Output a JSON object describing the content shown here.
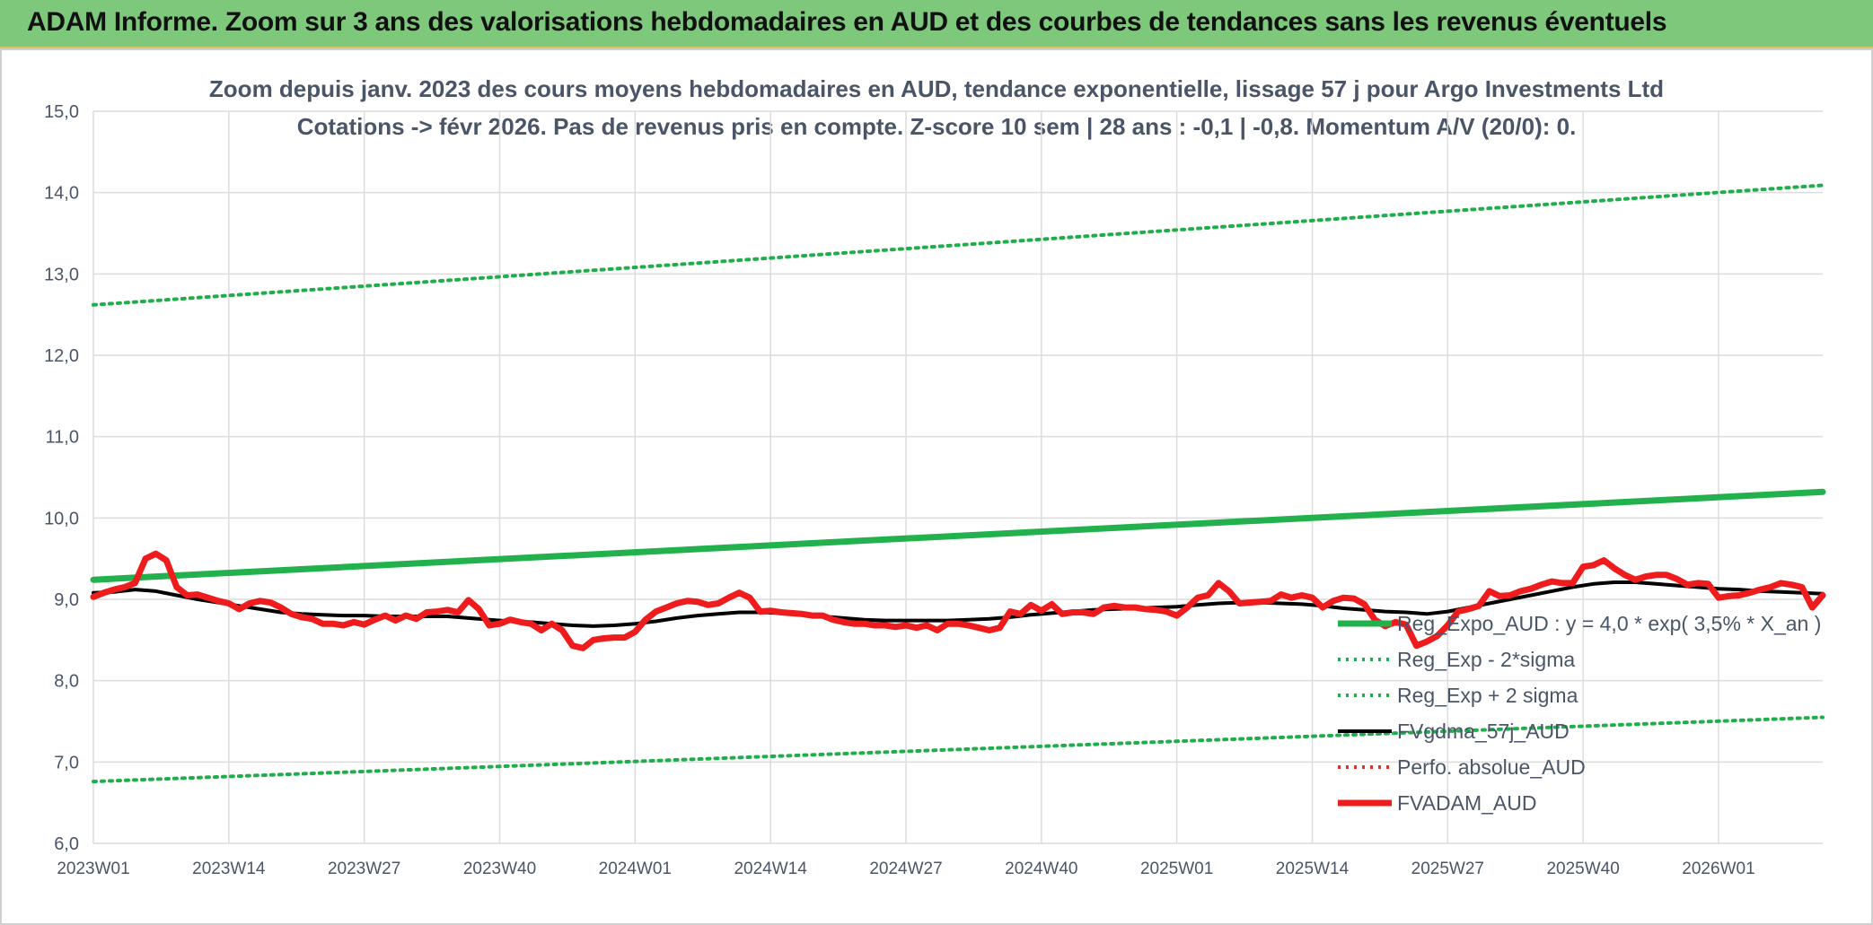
{
  "banner": {
    "title": "ADAM Informe. Zoom sur 3 ans des valorisations hebdomadaires en AUD et des courbes de tendances sans les revenus éventuels"
  },
  "colors": {
    "banner_bg": "#7dc87a",
    "trend": "#22b14c",
    "bands": "#1fae4b",
    "sma": "#000000",
    "perf": "#e03030",
    "fvadam": "#ee1c1c",
    "grid": "#dcdcdc",
    "text": "#4a5568"
  },
  "chart_data": {
    "type": "line",
    "title_lines": [
      "Zoom depuis janv. 2023 des cours moyens hebdomadaires en AUD, tendance exponentielle, lissage 57 j pour Argo Investments Ltd",
      "Cotations -> févr 2026. Pas de revenus pris en compte. Z-score 10 sem | 28 ans : -0,1 | -0,8. Momentum A/V (20/0): 0."
    ],
    "x_tick_labels": [
      "2023W01",
      "2023W14",
      "2023W27",
      "2023W40",
      "2024W01",
      "2024W14",
      "2024W27",
      "2024W40",
      "2025W01",
      "2025W14",
      "2025W27",
      "2025W40",
      "2026W01"
    ],
    "y_tick_labels": [
      "6,0",
      "7,0",
      "8,0",
      "9,0",
      "10,0",
      "11,0",
      "12,0",
      "13,0",
      "14,0",
      "15,0"
    ],
    "ylim": [
      6,
      15
    ],
    "grid": true,
    "legend_position": "bottom-right",
    "series": [
      {
        "name": "Reg_Expo_AUD : y = 4,0 * exp( 3,5% *  X_an )",
        "style": "solid-thick",
        "color": "#22b14c",
        "points": [
          [
            0,
            9.24
          ],
          [
            166,
            10.32
          ]
        ]
      },
      {
        "name": "Reg_Exp - 2*sigma",
        "style": "dotted",
        "color": "#1fae4b",
        "points": [
          [
            0,
            6.76
          ],
          [
            166,
            7.55
          ]
        ]
      },
      {
        "name": "Reg_Exp + 2 sigma",
        "style": "dotted",
        "color": "#1fae4b",
        "points": [
          [
            0,
            12.62
          ],
          [
            166,
            14.09
          ]
        ]
      },
      {
        "name": "FVgdma_57j_AUD",
        "style": "solid",
        "color": "#000000",
        "points": [
          [
            0,
            9.08
          ],
          [
            2,
            9.09
          ],
          [
            4,
            9.12
          ],
          [
            6,
            9.1
          ],
          [
            8,
            9.05
          ],
          [
            10,
            9.0
          ],
          [
            12,
            8.96
          ],
          [
            14,
            8.92
          ],
          [
            16,
            8.88
          ],
          [
            18,
            8.84
          ],
          [
            20,
            8.82
          ],
          [
            22,
            8.81
          ],
          [
            24,
            8.8
          ],
          [
            26,
            8.8
          ],
          [
            28,
            8.79
          ],
          [
            30,
            8.79
          ],
          [
            32,
            8.79
          ],
          [
            34,
            8.79
          ],
          [
            36,
            8.77
          ],
          [
            38,
            8.75
          ],
          [
            40,
            8.73
          ],
          [
            42,
            8.72
          ],
          [
            44,
            8.7
          ],
          [
            46,
            8.68
          ],
          [
            48,
            8.67
          ],
          [
            50,
            8.68
          ],
          [
            52,
            8.7
          ],
          [
            54,
            8.73
          ],
          [
            56,
            8.77
          ],
          [
            58,
            8.8
          ],
          [
            60,
            8.82
          ],
          [
            62,
            8.84
          ],
          [
            64,
            8.84
          ],
          [
            66,
            8.83
          ],
          [
            68,
            8.81
          ],
          [
            70,
            8.79
          ],
          [
            72,
            8.77
          ],
          [
            74,
            8.75
          ],
          [
            76,
            8.74
          ],
          [
            78,
            8.74
          ],
          [
            80,
            8.74
          ],
          [
            82,
            8.74
          ],
          [
            84,
            8.75
          ],
          [
            86,
            8.76
          ],
          [
            88,
            8.78
          ],
          [
            90,
            8.81
          ],
          [
            92,
            8.83
          ],
          [
            94,
            8.85
          ],
          [
            96,
            8.87
          ],
          [
            98,
            8.88
          ],
          [
            100,
            8.89
          ],
          [
            102,
            8.9
          ],
          [
            104,
            8.91
          ],
          [
            106,
            8.93
          ],
          [
            108,
            8.95
          ],
          [
            110,
            8.96
          ],
          [
            112,
            8.96
          ],
          [
            114,
            8.95
          ],
          [
            116,
            8.94
          ],
          [
            118,
            8.92
          ],
          [
            120,
            8.89
          ],
          [
            122,
            8.87
          ],
          [
            124,
            8.85
          ],
          [
            126,
            8.84
          ],
          [
            128,
            8.82
          ],
          [
            130,
            8.85
          ],
          [
            132,
            8.9
          ],
          [
            134,
            8.95
          ],
          [
            136,
            9.0
          ],
          [
            138,
            9.05
          ],
          [
            140,
            9.1
          ],
          [
            142,
            9.15
          ],
          [
            144,
            9.19
          ],
          [
            146,
            9.21
          ],
          [
            148,
            9.21
          ],
          [
            150,
            9.19
          ],
          [
            152,
            9.17
          ],
          [
            154,
            9.15
          ],
          [
            156,
            9.13
          ],
          [
            158,
            9.12
          ],
          [
            160,
            9.1
          ],
          [
            162,
            9.09
          ],
          [
            164,
            9.08
          ],
          [
            166,
            9.07
          ]
        ]
      },
      {
        "name": "Perfo. absolue_AUD",
        "style": "dotted",
        "color": "#e03030",
        "points": []
      },
      {
        "name": "FVADAM_AUD",
        "style": "solid-thick",
        "color": "#ee1c1c",
        "points": [
          [
            0,
            9.03
          ],
          [
            1,
            9.08
          ],
          [
            2,
            9.12
          ],
          [
            3,
            9.15
          ],
          [
            4,
            9.2
          ],
          [
            5,
            9.5
          ],
          [
            6,
            9.56
          ],
          [
            7,
            9.48
          ],
          [
            8,
            9.15
          ],
          [
            9,
            9.05
          ],
          [
            10,
            9.06
          ],
          [
            11,
            9.02
          ],
          [
            12,
            8.98
          ],
          [
            13,
            8.95
          ],
          [
            14,
            8.88
          ],
          [
            15,
            8.95
          ],
          [
            16,
            8.98
          ],
          [
            17,
            8.96
          ],
          [
            18,
            8.9
          ],
          [
            19,
            8.82
          ],
          [
            20,
            8.78
          ],
          [
            21,
            8.76
          ],
          [
            22,
            8.7
          ],
          [
            23,
            8.7
          ],
          [
            24,
            8.68
          ],
          [
            25,
            8.72
          ],
          [
            26,
            8.69
          ],
          [
            27,
            8.75
          ],
          [
            28,
            8.8
          ],
          [
            29,
            8.74
          ],
          [
            30,
            8.8
          ],
          [
            31,
            8.76
          ],
          [
            32,
            8.84
          ],
          [
            33,
            8.85
          ],
          [
            34,
            8.87
          ],
          [
            35,
            8.84
          ],
          [
            36,
            8.99
          ],
          [
            37,
            8.88
          ],
          [
            38,
            8.68
          ],
          [
            39,
            8.7
          ],
          [
            40,
            8.75
          ],
          [
            41,
            8.72
          ],
          [
            42,
            8.7
          ],
          [
            43,
            8.62
          ],
          [
            44,
            8.7
          ],
          [
            45,
            8.62
          ],
          [
            46,
            8.43
          ],
          [
            47,
            8.4
          ],
          [
            48,
            8.5
          ],
          [
            49,
            8.52
          ],
          [
            50,
            8.53
          ],
          [
            51,
            8.53
          ],
          [
            52,
            8.6
          ],
          [
            53,
            8.75
          ],
          [
            54,
            8.85
          ],
          [
            55,
            8.9
          ],
          [
            56,
            8.95
          ],
          [
            57,
            8.98
          ],
          [
            58,
            8.97
          ],
          [
            59,
            8.93
          ],
          [
            60,
            8.95
          ],
          [
            61,
            9.02
          ],
          [
            62,
            9.08
          ],
          [
            63,
            9.02
          ],
          [
            64,
            8.85
          ],
          [
            65,
            8.86
          ],
          [
            66,
            8.84
          ],
          [
            67,
            8.83
          ],
          [
            68,
            8.82
          ],
          [
            69,
            8.8
          ],
          [
            70,
            8.8
          ],
          [
            71,
            8.75
          ],
          [
            72,
            8.72
          ],
          [
            73,
            8.7
          ],
          [
            74,
            8.7
          ],
          [
            75,
            8.68
          ],
          [
            76,
            8.68
          ],
          [
            77,
            8.66
          ],
          [
            78,
            8.68
          ],
          [
            79,
            8.65
          ],
          [
            80,
            8.68
          ],
          [
            81,
            8.62
          ],
          [
            82,
            8.7
          ],
          [
            83,
            8.7
          ],
          [
            84,
            8.68
          ],
          [
            85,
            8.65
          ],
          [
            86,
            8.62
          ],
          [
            87,
            8.65
          ],
          [
            88,
            8.85
          ],
          [
            89,
            8.82
          ],
          [
            90,
            8.93
          ],
          [
            91,
            8.86
          ],
          [
            92,
            8.94
          ],
          [
            93,
            8.82
          ],
          [
            94,
            8.84
          ],
          [
            95,
            8.84
          ],
          [
            96,
            8.82
          ],
          [
            97,
            8.9
          ],
          [
            98,
            8.92
          ],
          [
            99,
            8.9
          ],
          [
            100,
            8.9
          ],
          [
            101,
            8.88
          ],
          [
            102,
            8.87
          ],
          [
            103,
            8.85
          ],
          [
            104,
            8.8
          ],
          [
            105,
            8.9
          ],
          [
            106,
            9.02
          ],
          [
            107,
            9.05
          ],
          [
            108,
            9.2
          ],
          [
            109,
            9.1
          ],
          [
            110,
            8.95
          ],
          [
            111,
            8.96
          ],
          [
            112,
            8.97
          ],
          [
            113,
            8.98
          ],
          [
            114,
            9.06
          ],
          [
            115,
            9.02
          ],
          [
            116,
            9.05
          ],
          [
            117,
            9.02
          ],
          [
            118,
            8.9
          ],
          [
            119,
            8.98
          ],
          [
            120,
            9.02
          ],
          [
            121,
            9.01
          ],
          [
            122,
            8.94
          ],
          [
            123,
            8.75
          ],
          [
            124,
            8.67
          ],
          [
            125,
            8.72
          ],
          [
            126,
            8.69
          ],
          [
            127,
            8.43
          ],
          [
            128,
            8.48
          ],
          [
            129,
            8.55
          ],
          [
            130,
            8.68
          ],
          [
            131,
            8.85
          ],
          [
            132,
            8.88
          ],
          [
            133,
            8.92
          ],
          [
            134,
            9.1
          ],
          [
            135,
            9.04
          ],
          [
            136,
            9.05
          ],
          [
            137,
            9.1
          ],
          [
            138,
            9.13
          ],
          [
            139,
            9.18
          ],
          [
            140,
            9.22
          ],
          [
            141,
            9.2
          ],
          [
            142,
            9.2
          ],
          [
            143,
            9.4
          ],
          [
            144,
            9.42
          ],
          [
            145,
            9.48
          ],
          [
            146,
            9.38
          ],
          [
            147,
            9.3
          ],
          [
            148,
            9.24
          ],
          [
            149,
            9.28
          ],
          [
            150,
            9.3
          ],
          [
            151,
            9.3
          ],
          [
            152,
            9.25
          ],
          [
            153,
            9.18
          ],
          [
            154,
            9.2
          ],
          [
            155,
            9.19
          ],
          [
            156,
            9.02
          ],
          [
            157,
            9.04
          ],
          [
            158,
            9.05
          ],
          [
            159,
            9.08
          ],
          [
            160,
            9.12
          ],
          [
            161,
            9.15
          ],
          [
            162,
            9.2
          ],
          [
            163,
            9.18
          ],
          [
            164,
            9.15
          ],
          [
            165,
            8.9
          ],
          [
            166,
            9.05
          ]
        ]
      }
    ]
  }
}
